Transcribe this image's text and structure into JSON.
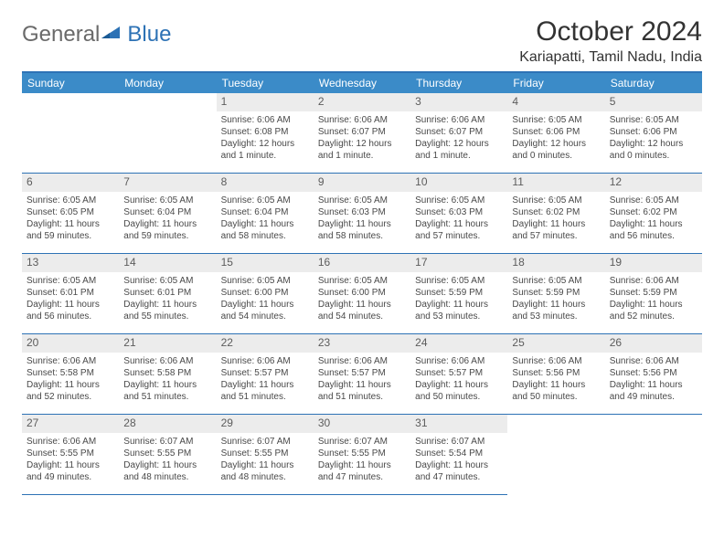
{
  "logo": {
    "text1": "General",
    "text2": "Blue"
  },
  "title": "October 2024",
  "location": "Kariapatti, Tamil Nadu, India",
  "colors": {
    "header_bg": "#3b8bc8",
    "border": "#2d72b5",
    "daynum_bg": "#ececec",
    "text": "#494949",
    "logo_gray": "#6a6a6a",
    "logo_blue": "#2d72b5"
  },
  "weekdays": [
    "Sunday",
    "Monday",
    "Tuesday",
    "Wednesday",
    "Thursday",
    "Friday",
    "Saturday"
  ],
  "leading_blanks": 2,
  "days": [
    {
      "n": "1",
      "sunrise": "Sunrise: 6:06 AM",
      "sunset": "Sunset: 6:08 PM",
      "day1": "Daylight: 12 hours",
      "day2": "and 1 minute."
    },
    {
      "n": "2",
      "sunrise": "Sunrise: 6:06 AM",
      "sunset": "Sunset: 6:07 PM",
      "day1": "Daylight: 12 hours",
      "day2": "and 1 minute."
    },
    {
      "n": "3",
      "sunrise": "Sunrise: 6:06 AM",
      "sunset": "Sunset: 6:07 PM",
      "day1": "Daylight: 12 hours",
      "day2": "and 1 minute."
    },
    {
      "n": "4",
      "sunrise": "Sunrise: 6:05 AM",
      "sunset": "Sunset: 6:06 PM",
      "day1": "Daylight: 12 hours",
      "day2": "and 0 minutes."
    },
    {
      "n": "5",
      "sunrise": "Sunrise: 6:05 AM",
      "sunset": "Sunset: 6:06 PM",
      "day1": "Daylight: 12 hours",
      "day2": "and 0 minutes."
    },
    {
      "n": "6",
      "sunrise": "Sunrise: 6:05 AM",
      "sunset": "Sunset: 6:05 PM",
      "day1": "Daylight: 11 hours",
      "day2": "and 59 minutes."
    },
    {
      "n": "7",
      "sunrise": "Sunrise: 6:05 AM",
      "sunset": "Sunset: 6:04 PM",
      "day1": "Daylight: 11 hours",
      "day2": "and 59 minutes."
    },
    {
      "n": "8",
      "sunrise": "Sunrise: 6:05 AM",
      "sunset": "Sunset: 6:04 PM",
      "day1": "Daylight: 11 hours",
      "day2": "and 58 minutes."
    },
    {
      "n": "9",
      "sunrise": "Sunrise: 6:05 AM",
      "sunset": "Sunset: 6:03 PM",
      "day1": "Daylight: 11 hours",
      "day2": "and 58 minutes."
    },
    {
      "n": "10",
      "sunrise": "Sunrise: 6:05 AM",
      "sunset": "Sunset: 6:03 PM",
      "day1": "Daylight: 11 hours",
      "day2": "and 57 minutes."
    },
    {
      "n": "11",
      "sunrise": "Sunrise: 6:05 AM",
      "sunset": "Sunset: 6:02 PM",
      "day1": "Daylight: 11 hours",
      "day2": "and 57 minutes."
    },
    {
      "n": "12",
      "sunrise": "Sunrise: 6:05 AM",
      "sunset": "Sunset: 6:02 PM",
      "day1": "Daylight: 11 hours",
      "day2": "and 56 minutes."
    },
    {
      "n": "13",
      "sunrise": "Sunrise: 6:05 AM",
      "sunset": "Sunset: 6:01 PM",
      "day1": "Daylight: 11 hours",
      "day2": "and 56 minutes."
    },
    {
      "n": "14",
      "sunrise": "Sunrise: 6:05 AM",
      "sunset": "Sunset: 6:01 PM",
      "day1": "Daylight: 11 hours",
      "day2": "and 55 minutes."
    },
    {
      "n": "15",
      "sunrise": "Sunrise: 6:05 AM",
      "sunset": "Sunset: 6:00 PM",
      "day1": "Daylight: 11 hours",
      "day2": "and 54 minutes."
    },
    {
      "n": "16",
      "sunrise": "Sunrise: 6:05 AM",
      "sunset": "Sunset: 6:00 PM",
      "day1": "Daylight: 11 hours",
      "day2": "and 54 minutes."
    },
    {
      "n": "17",
      "sunrise": "Sunrise: 6:05 AM",
      "sunset": "Sunset: 5:59 PM",
      "day1": "Daylight: 11 hours",
      "day2": "and 53 minutes."
    },
    {
      "n": "18",
      "sunrise": "Sunrise: 6:05 AM",
      "sunset": "Sunset: 5:59 PM",
      "day1": "Daylight: 11 hours",
      "day2": "and 53 minutes."
    },
    {
      "n": "19",
      "sunrise": "Sunrise: 6:06 AM",
      "sunset": "Sunset: 5:59 PM",
      "day1": "Daylight: 11 hours",
      "day2": "and 52 minutes."
    },
    {
      "n": "20",
      "sunrise": "Sunrise: 6:06 AM",
      "sunset": "Sunset: 5:58 PM",
      "day1": "Daylight: 11 hours",
      "day2": "and 52 minutes."
    },
    {
      "n": "21",
      "sunrise": "Sunrise: 6:06 AM",
      "sunset": "Sunset: 5:58 PM",
      "day1": "Daylight: 11 hours",
      "day2": "and 51 minutes."
    },
    {
      "n": "22",
      "sunrise": "Sunrise: 6:06 AM",
      "sunset": "Sunset: 5:57 PM",
      "day1": "Daylight: 11 hours",
      "day2": "and 51 minutes."
    },
    {
      "n": "23",
      "sunrise": "Sunrise: 6:06 AM",
      "sunset": "Sunset: 5:57 PM",
      "day1": "Daylight: 11 hours",
      "day2": "and 51 minutes."
    },
    {
      "n": "24",
      "sunrise": "Sunrise: 6:06 AM",
      "sunset": "Sunset: 5:57 PM",
      "day1": "Daylight: 11 hours",
      "day2": "and 50 minutes."
    },
    {
      "n": "25",
      "sunrise": "Sunrise: 6:06 AM",
      "sunset": "Sunset: 5:56 PM",
      "day1": "Daylight: 11 hours",
      "day2": "and 50 minutes."
    },
    {
      "n": "26",
      "sunrise": "Sunrise: 6:06 AM",
      "sunset": "Sunset: 5:56 PM",
      "day1": "Daylight: 11 hours",
      "day2": "and 49 minutes."
    },
    {
      "n": "27",
      "sunrise": "Sunrise: 6:06 AM",
      "sunset": "Sunset: 5:55 PM",
      "day1": "Daylight: 11 hours",
      "day2": "and 49 minutes."
    },
    {
      "n": "28",
      "sunrise": "Sunrise: 6:07 AM",
      "sunset": "Sunset: 5:55 PM",
      "day1": "Daylight: 11 hours",
      "day2": "and 48 minutes."
    },
    {
      "n": "29",
      "sunrise": "Sunrise: 6:07 AM",
      "sunset": "Sunset: 5:55 PM",
      "day1": "Daylight: 11 hours",
      "day2": "and 48 minutes."
    },
    {
      "n": "30",
      "sunrise": "Sunrise: 6:07 AM",
      "sunset": "Sunset: 5:55 PM",
      "day1": "Daylight: 11 hours",
      "day2": "and 47 minutes."
    },
    {
      "n": "31",
      "sunrise": "Sunrise: 6:07 AM",
      "sunset": "Sunset: 5:54 PM",
      "day1": "Daylight: 11 hours",
      "day2": "and 47 minutes."
    }
  ]
}
